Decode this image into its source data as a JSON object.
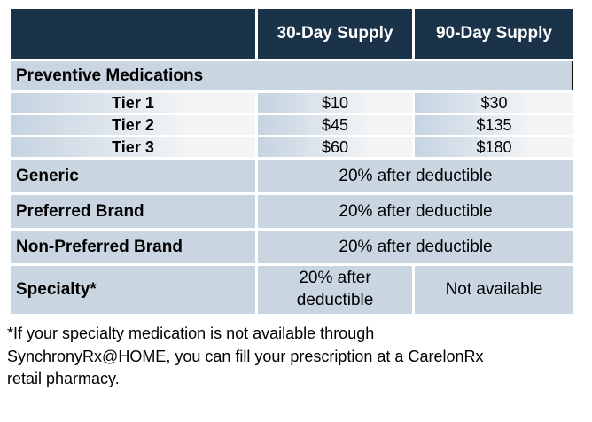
{
  "colors": {
    "header_bg": "#1a3349",
    "band_blue": "#c9d5e1",
    "tier_gradient_start": "#c5d3e1",
    "tier_gradient_end": "#f2f4f5"
  },
  "table": {
    "columns": [
      "",
      "30-Day Supply",
      "90-Day Supply"
    ],
    "section_header": "Preventive Medications",
    "tiers": [
      {
        "label": "Tier 1",
        "day30": "$10",
        "day90": "$30"
      },
      {
        "label": "Tier 2",
        "day30": "$45",
        "day90": "$135"
      },
      {
        "label": "Tier 3",
        "day30": "$60",
        "day90": "$180"
      }
    ],
    "coinsurance_rows": [
      {
        "label": "Generic",
        "value": "20% after deductible"
      },
      {
        "label": "Preferred Brand",
        "value": "20% after deductible"
      },
      {
        "label": "Non-Preferred Brand",
        "value": "20% after deductible"
      }
    ],
    "specialty": {
      "label": "Specialty*",
      "day30": "20% after\ndeductible",
      "day90": "Not available"
    }
  },
  "footnote": "*If your specialty medication is not available through\nSynchronyRx@HOME, you can fill your prescription at a CarelonRx\nretail pharmacy."
}
